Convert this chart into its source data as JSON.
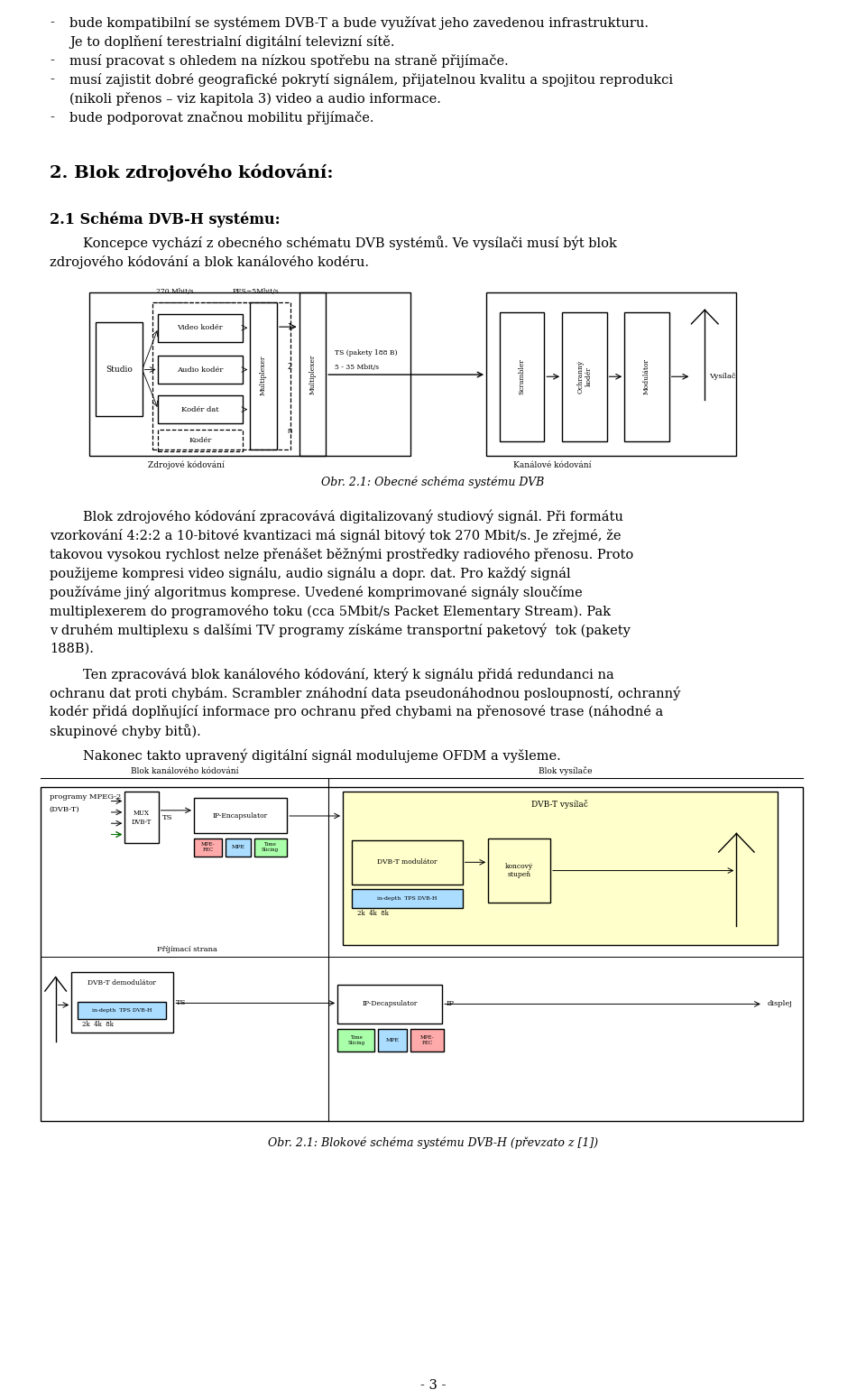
{
  "background_color": "#ffffff",
  "text_color": "#000000",
  "page_width": 9.6,
  "page_height": 15.5,
  "bullet_items": [
    [
      "bude kompatibilní se systémem DVB-T a bude využívat jeho zavedenou infrastrukturu.",
      "Je to doplňení terestrialní digitální televizní sítě."
    ],
    [
      "musí pracovat s ohledem na nízkou spotřebu na straně přijímače."
    ],
    [
      "musí zajistit dobré geografické pokrytí signálem, přijatelnou kvalitu a spojitou reprodukci",
      "(nikoli přenos – viz kapitola 3) video a audio informace."
    ],
    [
      "bude podporovat značnou mobilitu přijímače."
    ]
  ],
  "section_title": "2. Blok zdrojového kódování:",
  "subsection_title": "2.1 Schéma DVB-H systému:",
  "subsection_intro_lines": [
    "        Koncepce vychází z obecného schématu DVB systémů. Ve vysílači musí být blok",
    "zdrojového kódování a blok kanálového kodéru."
  ],
  "fig1_caption": "Obr. 2.1: Obecné schéma systému DVB",
  "para1_lines": [
    "        Blok zdrojového kódování zpracovává digitalizovaný studiový signál. Při formátu",
    "vzorkování 4:2:2 a 10-bitové kvantizaci má signál bitový tok 270 Mbit/s. Je zřejmé, že",
    "takovou vysokou rychlost nelze přenášet běžnými prostředky radiového přenosu. Proto",
    "použijeme kompresi video signálu, audio signálu a dopr. dat. Pro každý signál",
    "používáme jiný algoritmus komprese. Uvedené komprimované signály sloučíme",
    "multiplexerem do programového toku (cca 5Mbit/s Packet Elementary Stream). Pak",
    "v druhém multiplexu s dalšími TV programy získáme transportní paketový  tok (pakety",
    "188B)."
  ],
  "para2_lines": [
    "        Ten zpracovává blok kanálového kódování, který k signálu přidá redundanci na",
    "ochranu dat proti chybám. Scrambler znáhodní data pseudonáhodnou posloupností, ochranný",
    "kodér přidá doplňující informace pro ochranu před chybami na přenosové trase (náhodné a",
    "skupinové chyby bitů)."
  ],
  "para3_lines": [
    "        Nakonec takto upravený digitální signál modulujeme OFDM a vyšleme."
  ],
  "fig2_caption": "Obr. 2.1: Blokové schéma systému DVB-H (převzato z [1])",
  "page_number": "- 3 -"
}
